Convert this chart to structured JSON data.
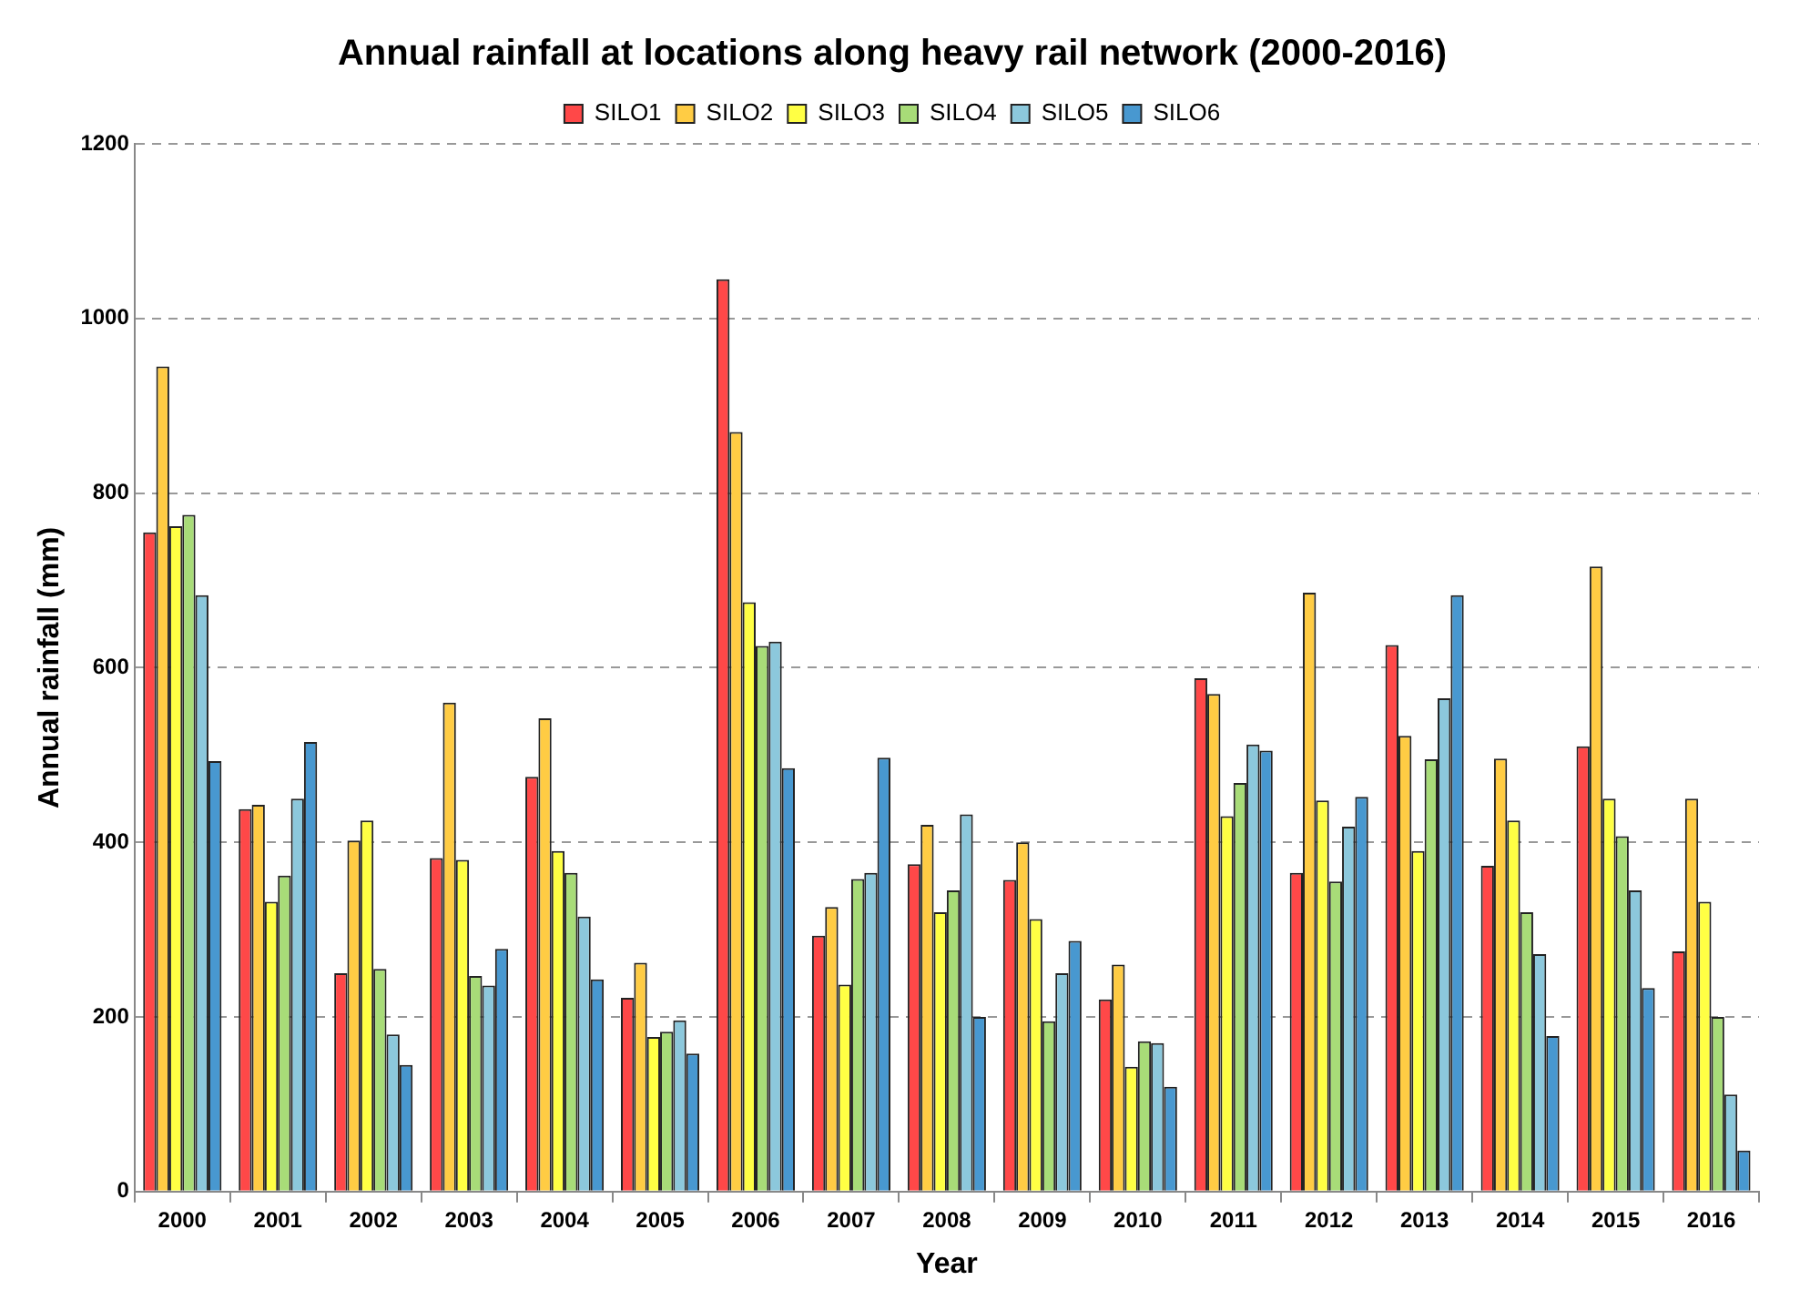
{
  "chart_data": {
    "type": "bar",
    "title": "Annual rainfall at locations along heavy rail network (2000-2016)",
    "xlabel": "Year",
    "ylabel": "Annual rainfall (mm)",
    "categories": [
      "2000",
      "2001",
      "2002",
      "2003",
      "2004",
      "2005",
      "2006",
      "2007",
      "2008",
      "2009",
      "2010",
      "2011",
      "2012",
      "2013",
      "2014",
      "2015",
      "2016"
    ],
    "series": [
      {
        "name": "SILO1",
        "color": "#ff4848",
        "values": [
          755,
          438,
          250,
          382,
          475,
          222,
          1045,
          293,
          375,
          357,
          220,
          588,
          365,
          626,
          373,
          510,
          275
        ]
      },
      {
        "name": "SILO2",
        "color": "#ffcc44",
        "values": [
          945,
          443,
          402,
          560,
          542,
          262,
          870,
          326,
          420,
          400,
          260,
          570,
          686,
          522,
          496,
          716,
          450
        ]
      },
      {
        "name": "SILO3",
        "color": "#ffff44",
        "values": [
          762,
          332,
          425,
          380,
          390,
          177,
          675,
          237,
          320,
          312,
          143,
          430,
          448,
          390,
          425,
          450,
          332
        ]
      },
      {
        "name": "SILO4",
        "color": "#a8dc78",
        "values": [
          775,
          362,
          255,
          247,
          365,
          183,
          625,
          358,
          345,
          195,
          172,
          468,
          355,
          495,
          320,
          407,
          200
        ]
      },
      {
        "name": "SILO5",
        "color": "#8cc8dc",
        "values": [
          683,
          450,
          180,
          236,
          315,
          196,
          630,
          365,
          432,
          250,
          170,
          512,
          418,
          565,
          272,
          345,
          111
        ]
      },
      {
        "name": "SILO6",
        "color": "#4898d0",
        "values": [
          493,
          515,
          145,
          278,
          243,
          158,
          485,
          497,
          200,
          287,
          120,
          505,
          452,
          683,
          178,
          233,
          47
        ]
      }
    ],
    "ylim": [
      0,
      1200
    ],
    "yticks": [
      0,
      200,
      400,
      600,
      800,
      1000,
      1200
    ],
    "grid": "y",
    "legend": "top"
  }
}
